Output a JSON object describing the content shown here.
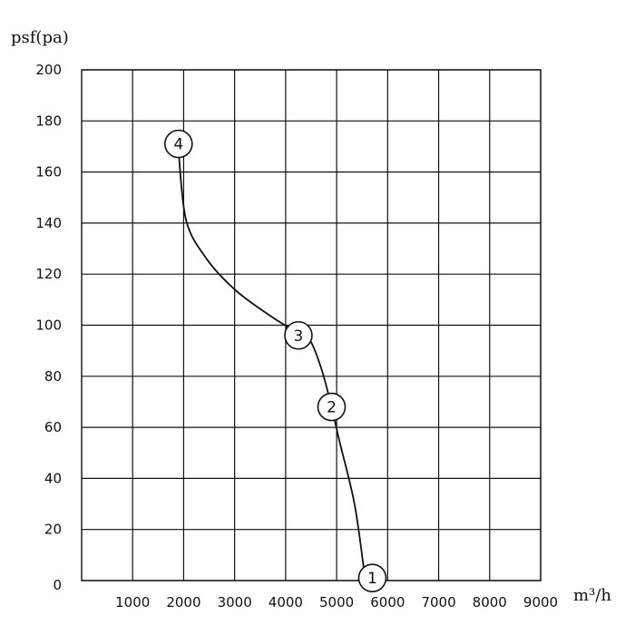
{
  "chart_data": {
    "type": "line",
    "ylabel": "psf(pa)",
    "xlabel": "m³/h",
    "xlim": [
      0,
      9000
    ],
    "ylim": [
      0,
      200
    ],
    "x_ticks": [
      1000,
      2000,
      3000,
      4000,
      5000,
      6000,
      7000,
      8000,
      9000
    ],
    "y_ticks": [
      0,
      20,
      40,
      60,
      80,
      100,
      120,
      140,
      160,
      180,
      200
    ],
    "grid": true,
    "series": [
      {
        "values": [
          {
            "x": 5550,
            "y": 2
          },
          {
            "x": 5350,
            "y": 30
          },
          {
            "x": 5050,
            "y": 55
          },
          {
            "x": 4900,
            "y": 68
          },
          {
            "x": 4700,
            "y": 83
          },
          {
            "x": 4450,
            "y": 95
          },
          {
            "x": 4150,
            "y": 98
          },
          {
            "x": 3600,
            "y": 105
          },
          {
            "x": 3000,
            "y": 114
          },
          {
            "x": 2450,
            "y": 126
          },
          {
            "x": 2050,
            "y": 141
          },
          {
            "x": 1900,
            "y": 168
          }
        ]
      }
    ],
    "annotations": [
      {
        "label": "1",
        "x": 5700,
        "y": 1
      },
      {
        "label": "2",
        "x": 4900,
        "y": 68
      },
      {
        "label": "3",
        "x": 4250,
        "y": 96
      },
      {
        "label": "4",
        "x": 1900,
        "y": 171
      }
    ]
  }
}
